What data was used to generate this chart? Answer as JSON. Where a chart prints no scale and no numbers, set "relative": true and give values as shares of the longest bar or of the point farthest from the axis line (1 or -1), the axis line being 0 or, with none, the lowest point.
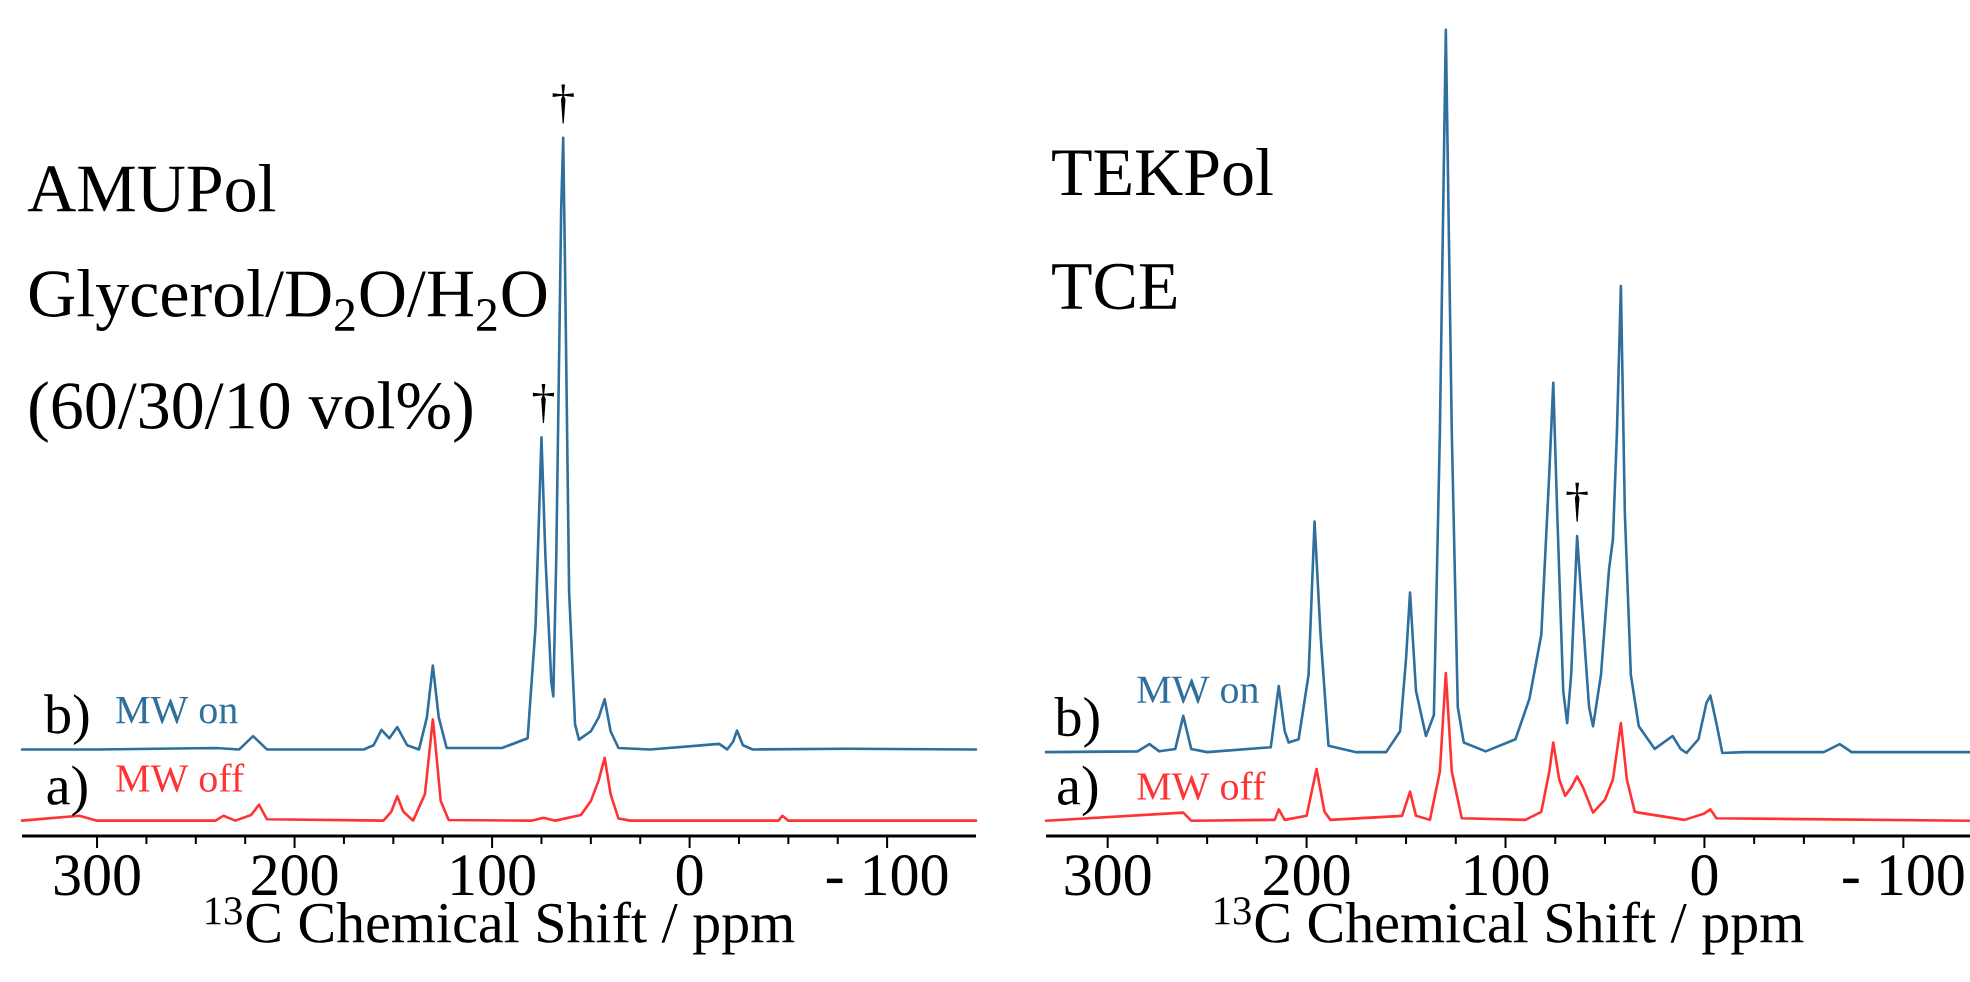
{
  "chart_data": [
    {
      "type": "line",
      "relative": true,
      "xlabel": "$^{13}$C Chemical Shift / ppm",
      "xlim": [
        338,
        -145
      ],
      "xticks": [
        300,
        200,
        100,
        0,
        {
          "value": -100,
          "label": "- 100"
        }
      ],
      "tick_labels": "x",
      "series": [
        {
          "name": "MW on",
          "color": "#2e6f9e",
          "x": [
            338,
            300,
            240,
            228,
            221,
            214,
            165,
            160,
            156,
            152,
            148,
            143,
            137,
            133,
            130,
            127,
            123,
            95,
            82,
            78,
            75,
            73,
            70,
            69,
            67.5,
            65,
            64,
            63,
            61,
            58,
            56,
            50,
            46,
            43,
            40,
            36,
            20,
            -15,
            -19,
            -22,
            -24,
            -27,
            -32,
            -80,
            -145
          ],
          "values": [
            0.124,
            0.124,
            0.126,
            0.124,
            0.143,
            0.124,
            0.124,
            0.13,
            0.152,
            0.14,
            0.156,
            0.13,
            0.124,
            0.17,
            0.244,
            0.17,
            0.126,
            0.126,
            0.14,
            0.3,
            0.571,
            0.4,
            0.22,
            0.2,
            0.4,
            0.9,
            1.0,
            0.8,
            0.35,
            0.16,
            0.138,
            0.15,
            0.17,
            0.196,
            0.15,
            0.126,
            0.124,
            0.132,
            0.124,
            0.135,
            0.151,
            0.13,
            0.124,
            0.125,
            0.124
          ]
        },
        {
          "name": "MW off",
          "color": "#ff3333",
          "x": [
            338,
            309,
            300,
            240,
            236,
            230,
            222,
            218,
            214,
            155,
            151,
            148,
            145,
            140,
            134,
            131,
            130,
            129,
            126,
            122,
            80,
            74,
            68,
            55,
            50,
            46,
            43,
            40,
            36,
            30,
            -45,
            -47,
            -50,
            -145
          ],
          "values": [
            0.022,
            0.029,
            0.022,
            0.022,
            0.029,
            0.022,
            0.03,
            0.045,
            0.024,
            0.022,
            0.035,
            0.057,
            0.035,
            0.022,
            0.06,
            0.14,
            0.167,
            0.14,
            0.05,
            0.023,
            0.022,
            0.026,
            0.022,
            0.03,
            0.05,
            0.08,
            0.112,
            0.06,
            0.025,
            0.022,
            0.022,
            0.029,
            0.022,
            0.022
          ]
        }
      ],
      "annotations": [
        "AMUPol",
        "Glycerol/D$_{2}$O/H$_{2}$O",
        "(60/30/10 vol%)",
        {
          "text": "b)",
          "x": 315,
          "y": 0.124
        },
        {
          "text": "a)",
          "x": 315,
          "y": 0.022
        },
        {
          "text": "†",
          "x": 74,
          "y": 0.571
        },
        {
          "text": "†",
          "x": 64,
          "y": 1.0
        }
      ]
    },
    {
      "type": "line",
      "relative": true,
      "xlabel": "$^{13}$C Chemical Shift / ppm",
      "xlim": [
        331,
        -133.5
      ],
      "xticks": [
        300,
        200,
        100,
        0,
        {
          "value": -100,
          "label": "- 100"
        }
      ],
      "tick_labels": "x",
      "series": [
        {
          "name": "MW on",
          "color": "#2e6f9e",
          "x": [
            331,
            285,
            279,
            274,
            266,
            262,
            258,
            250,
            218,
            214,
            211,
            209,
            204,
            199,
            196,
            193,
            189,
            175,
            160,
            153,
            150,
            148,
            145,
            140,
            136,
            133,
            130,
            127,
            124,
            121,
            110,
            95,
            88,
            82,
            78,
            76,
            74,
            71,
            69,
            67,
            64,
            62,
            58,
            56,
            52,
            48,
            46,
            44,
            42,
            40,
            37,
            33,
            25,
            16,
            12,
            9,
            3,
            -1,
            -3,
            -6,
            -9,
            -20,
            -60,
            -68,
            -74,
            -133.5
          ],
          "values": [
            0.104,
            0.105,
            0.114,
            0.105,
            0.108,
            0.149,
            0.108,
            0.104,
            0.11,
            0.186,
            0.13,
            0.116,
            0.12,
            0.2,
            0.39,
            0.25,
            0.112,
            0.104,
            0.104,
            0.13,
            0.22,
            0.302,
            0.18,
            0.124,
            0.15,
            0.5,
            1.0,
            0.5,
            0.16,
            0.116,
            0.105,
            0.12,
            0.17,
            0.25,
            0.45,
            0.562,
            0.4,
            0.18,
            0.14,
            0.2,
            0.372,
            0.3,
            0.16,
            0.136,
            0.2,
            0.33,
            0.368,
            0.5,
            0.682,
            0.4,
            0.2,
            0.136,
            0.108,
            0.124,
            0.108,
            0.103,
            0.12,
            0.165,
            0.174,
            0.14,
            0.103,
            0.104,
            0.104,
            0.114,
            0.104,
            0.104
          ]
        },
        {
          "name": "MW off",
          "color": "#ff3333",
          "x": [
            331,
            262,
            258,
            216,
            214,
            211,
            200,
            195,
            191,
            188,
            152,
            148,
            145,
            138,
            133,
            130,
            127,
            122,
            90,
            82,
            78,
            76,
            73,
            70,
            67,
            64,
            61,
            56,
            50,
            46,
            42,
            39,
            35,
            33,
            10,
            0,
            -3,
            -6,
            -133.5
          ],
          "values": [
            0.019,
            0.029,
            0.019,
            0.02,
            0.033,
            0.02,
            0.025,
            0.083,
            0.03,
            0.02,
            0.025,
            0.055,
            0.025,
            0.02,
            0.08,
            0.202,
            0.08,
            0.022,
            0.02,
            0.03,
            0.08,
            0.116,
            0.07,
            0.05,
            0.06,
            0.074,
            0.06,
            0.029,
            0.045,
            0.07,
            0.14,
            0.07,
            0.03,
            0.029,
            0.02,
            0.028,
            0.033,
            0.022,
            0.019
          ]
        }
      ],
      "annotations": [
        "TEKPol",
        "TCE",
        {
          "text": "b)",
          "x": 315,
          "y": 0.104
        },
        {
          "text": "a)",
          "x": 315,
          "y": 0.019
        },
        {
          "text": "†",
          "x": 64,
          "y": 0.372
        }
      ]
    }
  ]
}
